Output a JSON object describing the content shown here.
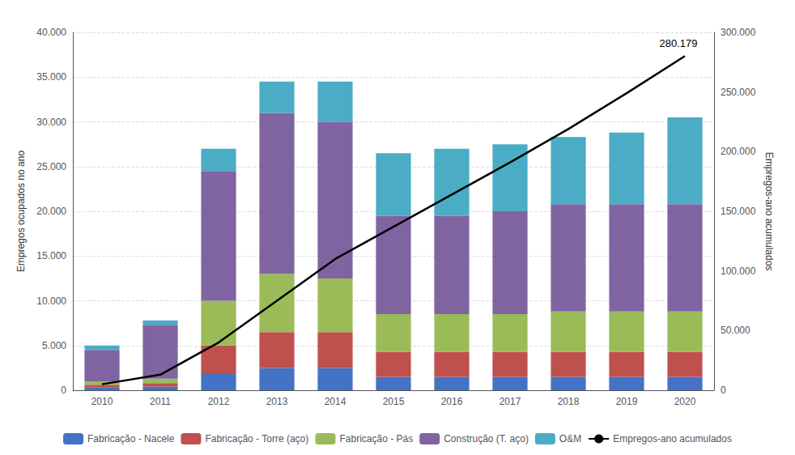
{
  "chart_data": {
    "type": "bar",
    "categories": [
      "2010",
      "2011",
      "2012",
      "2013",
      "2014",
      "2015",
      "2016",
      "2017",
      "2018",
      "2019",
      "2020"
    ],
    "series": [
      {
        "name": "Fabricação - Nacele",
        "color": "#4472C4",
        "values": [
          300,
          400,
          1800,
          2500,
          2500,
          1500,
          1500,
          1500,
          1500,
          1500,
          1500
        ]
      },
      {
        "name": "Fabricação - Torre (aço)",
        "color": "#C0504D",
        "values": [
          300,
          400,
          3200,
          4000,
          4000,
          2800,
          2800,
          2800,
          2800,
          2800,
          2800
        ]
      },
      {
        "name": "Fabricação - Pás",
        "color": "#9BBB59",
        "values": [
          400,
          500,
          5000,
          6500,
          6000,
          4200,
          4200,
          4200,
          4500,
          4500,
          4500
        ]
      },
      {
        "name": "Construção (T. aço)",
        "color": "#8064A2",
        "values": [
          3500,
          6000,
          14500,
          18000,
          17500,
          11000,
          11000,
          11500,
          12000,
          12000,
          12000
        ]
      },
      {
        "name": "O&M",
        "color": "#4BACC6",
        "values": [
          500,
          500,
          2500,
          3500,
          4500,
          7000,
          7500,
          7500,
          7500,
          8000,
          9700
        ]
      },
      {
        "name": "Empregos-ano acumulados",
        "type": "line",
        "axis": "y2",
        "color": "#000000",
        "values": [
          5000,
          13000,
          40000,
          75000,
          110000,
          137000,
          164000,
          191000,
          219000,
          249000,
          280179
        ]
      }
    ],
    "stacked": true,
    "ylabel": "Empregos ocupados no ano",
    "y2label": "Empregos-ano acumulados",
    "ylim": [
      0,
      40000
    ],
    "yticks": [
      0,
      {
        "value": 5000,
        "label": "5.000"
      },
      {
        "value": 10000,
        "label": "10.000"
      },
      {
        "value": 15000,
        "label": "15.000"
      },
      {
        "value": 20000,
        "label": "20.000"
      },
      {
        "value": 25000,
        "label": "25.000"
      },
      {
        "value": 30000,
        "label": "30.000"
      },
      {
        "value": 35000,
        "label": "35.000"
      },
      {
        "value": 40000,
        "label": "40.000"
      }
    ],
    "y2lim": [
      0,
      300000
    ],
    "y2ticks": [
      0,
      {
        "value": 50000,
        "label": "50.000"
      },
      {
        "value": 100000,
        "label": "100.000"
      },
      {
        "value": 150000,
        "label": "150.000"
      },
      {
        "value": 200000,
        "label": "200.000"
      },
      {
        "value": 250000,
        "label": "250.000"
      },
      {
        "value": 300000,
        "label": "300.000"
      }
    ],
    "annotations": [
      {
        "text": "280.179",
        "x": "2020",
        "y": 280179,
        "axis": "y2"
      }
    ],
    "grid": true,
    "legend": "bottom"
  }
}
